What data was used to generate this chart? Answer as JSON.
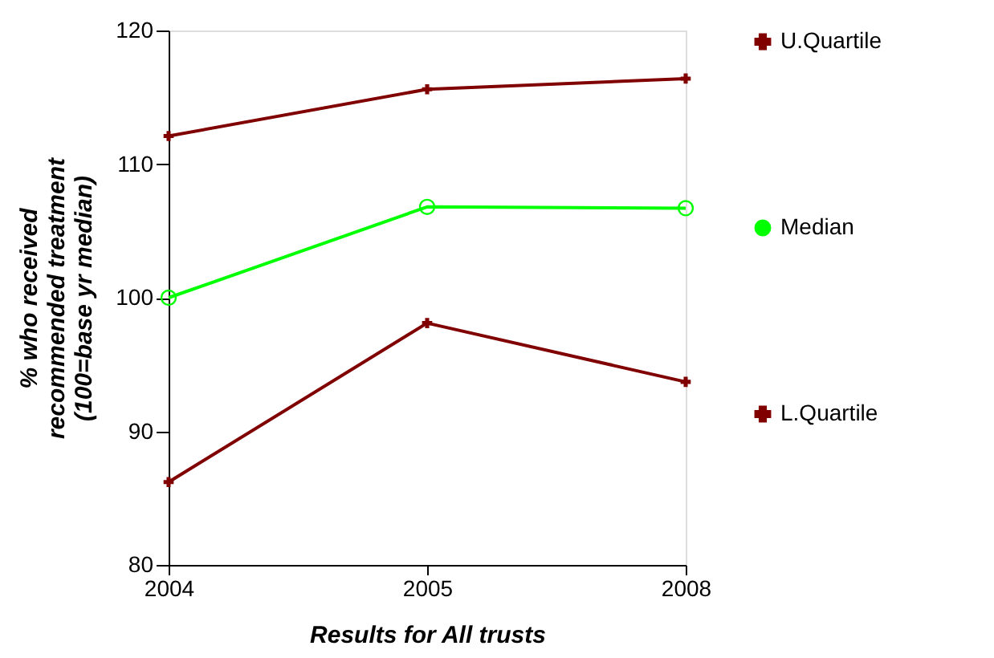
{
  "chart_data": {
    "type": "line",
    "xlabel": "Results for All trusts",
    "ylabel": "% who received\nrecommended treatment\n(100=base yr median)",
    "categories": [
      "2004",
      "2005",
      "2008"
    ],
    "ylim": [
      80,
      120
    ],
    "yticks": [
      80,
      90,
      100,
      110,
      120
    ],
    "grid": false,
    "legend": "right",
    "series": [
      {
        "name": "U.Quartile",
        "color": "#800000",
        "marker": "cross",
        "values": [
          112.1,
          115.6,
          116.4
        ]
      },
      {
        "name": "Median",
        "color": "#00ff00",
        "marker": "circle",
        "values": [
          100.0,
          106.8,
          106.7
        ]
      },
      {
        "name": "L.Quartile",
        "color": "#800000",
        "marker": "cross",
        "values": [
          86.2,
          98.1,
          93.7
        ]
      }
    ]
  }
}
